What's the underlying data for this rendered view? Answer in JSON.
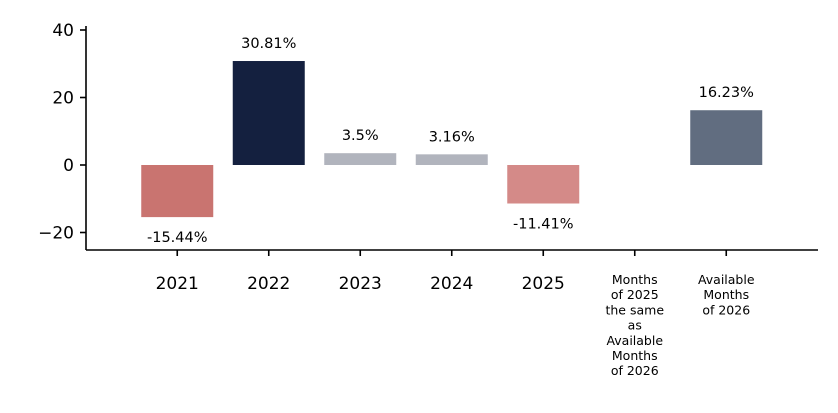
{
  "chart_data": {
    "type": "bar",
    "categories": [
      "2021",
      "2022",
      "2023",
      "2024",
      "2025",
      "Months\nof 2025\nthe same\nas\nAvailable\nMonths\nof 2026",
      "Available\nMonths\nof 2026"
    ],
    "values": [
      -15.44,
      30.81,
      3.5,
      3.16,
      -11.41,
      null,
      16.23
    ],
    "data_labels": [
      "-15.44%",
      "30.81%",
      "3.5%",
      "3.16%",
      "-11.41%",
      "",
      "16.23%"
    ],
    "colors": [
      "#c97470",
      "#14203f",
      "#b1b4bd",
      "#b1b4bd",
      "#d48a88",
      null,
      "#616d80"
    ],
    "ylim": [
      -25,
      40
    ],
    "yticks": [
      40,
      20,
      0,
      -20
    ],
    "ytick_labels": [
      "40",
      "20",
      "0",
      "−20"
    ],
    "grid": false,
    "title": "",
    "xlabel": "",
    "ylabel": ""
  }
}
